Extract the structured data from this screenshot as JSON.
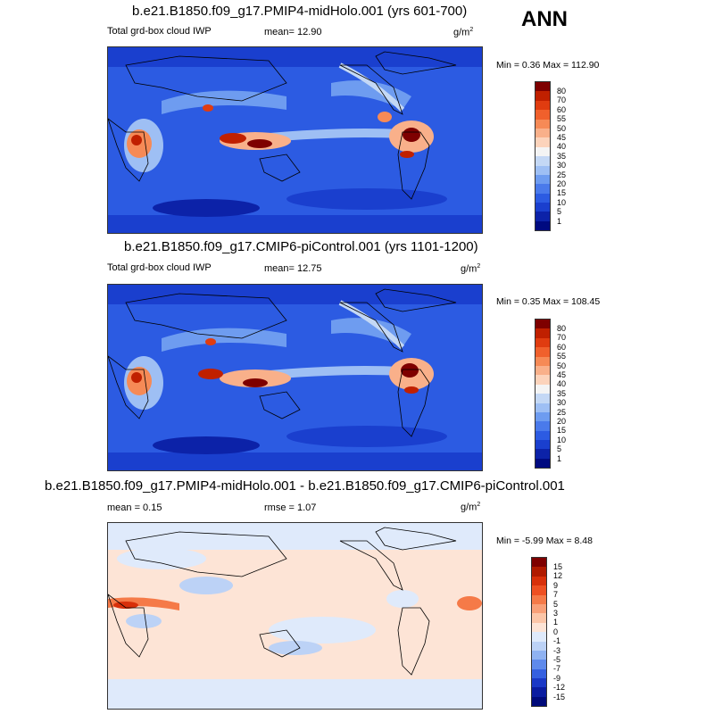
{
  "season": "ANN",
  "panels": [
    {
      "title": "b.e21.B1850.f09_g17.PMIP4-midHolo.001 (yrs 601-700)",
      "left_label": "Total grd-box cloud IWP",
      "mean_label": "mean=  12.90",
      "units_base": "g/m",
      "units_exp": "2",
      "stats": "Min =  0.36 Max = 112.90",
      "colorbar_ticks": [
        "80",
        "70",
        "60",
        "55",
        "50",
        "45",
        "40",
        "35",
        "30",
        "25",
        "20",
        "15",
        "10",
        "5",
        "1"
      ],
      "colors": [
        "#7e0000",
        "#c02000",
        "#e03c10",
        "#f0602c",
        "#f68a56",
        "#f9b08a",
        "#fcd3bb",
        "#f4f4f4",
        "#c4d8f5",
        "#9ebff4",
        "#6e9cf0",
        "#4a7aeb",
        "#2c5be2",
        "#1a3fce",
        "#0c22a8",
        "#000a80"
      ]
    },
    {
      "title": "b.e21.B1850.f09_g17.CMIP6-piControl.001 (yrs 1101-1200)",
      "left_label": "Total grd-box cloud IWP",
      "mean_label": "mean=  12.75",
      "units_base": "g/m",
      "units_exp": "2",
      "stats": "Min =  0.35 Max = 108.45",
      "colorbar_ticks": [
        "80",
        "70",
        "60",
        "55",
        "50",
        "45",
        "40",
        "35",
        "30",
        "25",
        "20",
        "15",
        "10",
        "5",
        "1"
      ],
      "colors": [
        "#7e0000",
        "#c02000",
        "#e03c10",
        "#f0602c",
        "#f68a56",
        "#f9b08a",
        "#fcd3bb",
        "#f4f4f4",
        "#c4d8f5",
        "#9ebff4",
        "#6e9cf0",
        "#4a7aeb",
        "#2c5be2",
        "#1a3fce",
        "#0c22a8",
        "#000a80"
      ]
    },
    {
      "title": "b.e21.B1850.f09_g17.PMIP4-midHolo.001 - b.e21.B1850.f09_g17.CMIP6-piControl.001",
      "mean_label": "mean =   0.15",
      "rmse_label": "rmse =   1.07",
      "units_base": "g/m",
      "units_exp": "2",
      "stats": "Min =  -5.99 Max =   8.48",
      "colorbar_ticks": [
        "15",
        "12",
        "9",
        "7",
        "5",
        "3",
        "1",
        "0",
        "-1",
        "-3",
        "-5",
        "-7",
        "-9",
        "-12",
        "-15"
      ],
      "colors": [
        "#7e0000",
        "#b01a00",
        "#d8300a",
        "#ee5022",
        "#f57a48",
        "#f9a078",
        "#fcc6a8",
        "#fde4d6",
        "#dfeafb",
        "#bcd2f6",
        "#8fb2f1",
        "#5f8aeb",
        "#3560e0",
        "#1a38c6",
        "#0a1ca0",
        "#000a7a"
      ]
    }
  ]
}
